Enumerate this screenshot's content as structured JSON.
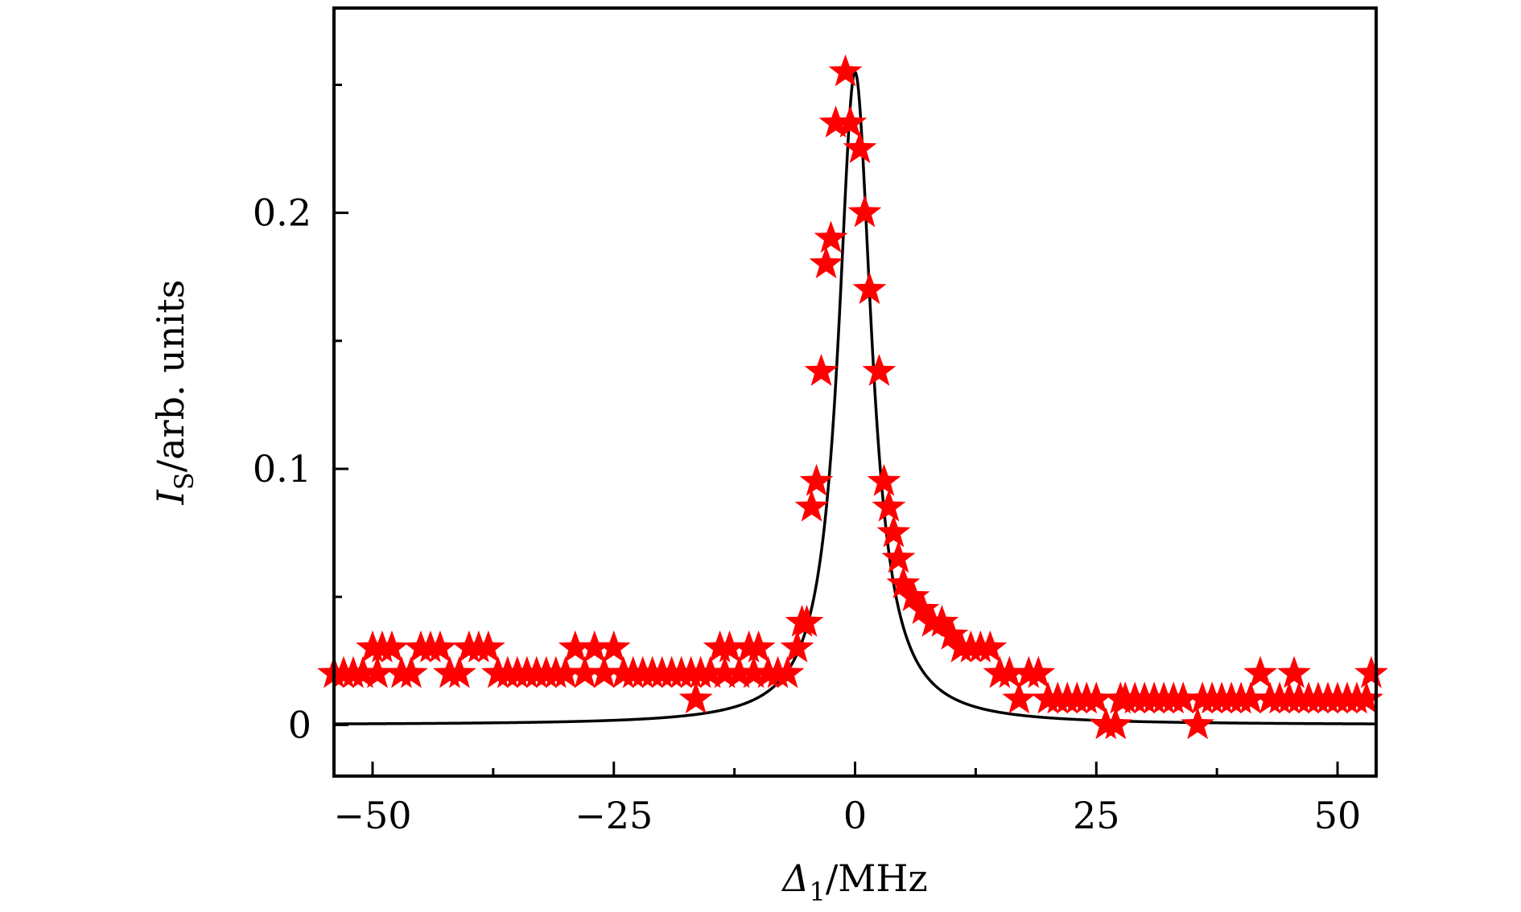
{
  "chart_data": {
    "type": "scatter",
    "xlabel": {
      "symbol": "Δ",
      "subscript": "1",
      "unit": "/MHz"
    },
    "ylabel": {
      "symbol": "I",
      "subscript": "S",
      "unit": "/arb. units"
    },
    "xlim": [
      -54,
      54
    ],
    "ylim": [
      -0.02,
      0.28
    ],
    "x_ticks": [
      -50,
      -25,
      0,
      25,
      50
    ],
    "x_tick_labels": [
      "−50",
      "−25",
      "0",
      "25",
      "50"
    ],
    "x_minor_ticks": [
      -37.5,
      -12.5,
      12.5,
      37.5
    ],
    "y_ticks": [
      0,
      0.1,
      0.2
    ],
    "y_tick_labels": [
      "0",
      "0.1",
      "0.2"
    ],
    "y_minor_ticks": [
      0.05,
      0.15,
      0.25
    ],
    "grid": false,
    "legend": "none",
    "marker_color": "#ff0000",
    "line_color": "#000000",
    "fit": {
      "type": "lorentzian",
      "center": 0,
      "amplitude": 0.255,
      "hwhm": 2.1
    },
    "series": [
      {
        "points": [
          [
            -54,
            0.02
          ],
          [
            -53,
            0.02
          ],
          [
            -52,
            0.02
          ],
          [
            -51,
            0.02
          ],
          [
            -50,
            0.03
          ],
          [
            -49.5,
            0.02
          ],
          [
            -49,
            0.03
          ],
          [
            -48,
            0.03
          ],
          [
            -47,
            0.02
          ],
          [
            -46,
            0.02
          ],
          [
            -45,
            0.03
          ],
          [
            -44,
            0.03
          ],
          [
            -43,
            0.03
          ],
          [
            -42,
            0.02
          ],
          [
            -41,
            0.02
          ],
          [
            -40,
            0.03
          ],
          [
            -39,
            0.03
          ],
          [
            -38,
            0.03
          ],
          [
            -37,
            0.02
          ],
          [
            -36,
            0.02
          ],
          [
            -35,
            0.02
          ],
          [
            -34,
            0.02
          ],
          [
            -33,
            0.02
          ],
          [
            -32,
            0.02
          ],
          [
            -31,
            0.02
          ],
          [
            -30,
            0.02
          ],
          [
            -29,
            0.03
          ],
          [
            -28,
            0.02
          ],
          [
            -27,
            0.03
          ],
          [
            -26,
            0.02
          ],
          [
            -25,
            0.03
          ],
          [
            -24,
            0.02
          ],
          [
            -23,
            0.02
          ],
          [
            -22,
            0.02
          ],
          [
            -21,
            0.02
          ],
          [
            -20,
            0.02
          ],
          [
            -19,
            0.02
          ],
          [
            -18,
            0.02
          ],
          [
            -17,
            0.02
          ],
          [
            -16.5,
            0.01
          ],
          [
            -16,
            0.02
          ],
          [
            -15,
            0.02
          ],
          [
            -14,
            0.03
          ],
          [
            -13.5,
            0.02
          ],
          [
            -13,
            0.03
          ],
          [
            -12,
            0.02
          ],
          [
            -11,
            0.03
          ],
          [
            -10.5,
            0.02
          ],
          [
            -10,
            0.03
          ],
          [
            -9,
            0.02
          ],
          [
            -8,
            0.02
          ],
          [
            -7,
            0.02
          ],
          [
            -6,
            0.03
          ],
          [
            -5.5,
            0.04
          ],
          [
            -5,
            0.04
          ],
          [
            -4.5,
            0.085
          ],
          [
            -4,
            0.095
          ],
          [
            -3.5,
            0.138
          ],
          [
            -3,
            0.18
          ],
          [
            -2.5,
            0.19
          ],
          [
            -2,
            0.235
          ],
          [
            -1,
            0.255
          ],
          [
            -0.5,
            0.235
          ],
          [
            0.5,
            0.225
          ],
          [
            1,
            0.2
          ],
          [
            1.5,
            0.17
          ],
          [
            2.5,
            0.138
          ],
          [
            3,
            0.095
          ],
          [
            3.5,
            0.085
          ],
          [
            4,
            0.075
          ],
          [
            4.5,
            0.065
          ],
          [
            5,
            0.055
          ],
          [
            6,
            0.05
          ],
          [
            7,
            0.045
          ],
          [
            8,
            0.04
          ],
          [
            9,
            0.04
          ],
          [
            10,
            0.035
          ],
          [
            11,
            0.03
          ],
          [
            12,
            0.03
          ],
          [
            13,
            0.03
          ],
          [
            14,
            0.03
          ],
          [
            15,
            0.02
          ],
          [
            16,
            0.02
          ],
          [
            17,
            0.01
          ],
          [
            18,
            0.02
          ],
          [
            19,
            0.02
          ],
          [
            20,
            0.01
          ],
          [
            21,
            0.01
          ],
          [
            22,
            0.01
          ],
          [
            23,
            0.01
          ],
          [
            24,
            0.01
          ],
          [
            25,
            0.01
          ],
          [
            26,
            0.0
          ],
          [
            27,
            0.0
          ],
          [
            27.5,
            0.01
          ],
          [
            28,
            0.01
          ],
          [
            29,
            0.01
          ],
          [
            30,
            0.01
          ],
          [
            31,
            0.01
          ],
          [
            32,
            0.01
          ],
          [
            33,
            0.01
          ],
          [
            34,
            0.01
          ],
          [
            35.5,
            0.0
          ],
          [
            36,
            0.01
          ],
          [
            37,
            0.01
          ],
          [
            38,
            0.01
          ],
          [
            39,
            0.01
          ],
          [
            40,
            0.01
          ],
          [
            41,
            0.01
          ],
          [
            42,
            0.02
          ],
          [
            43,
            0.01
          ],
          [
            44,
            0.01
          ],
          [
            45,
            0.01
          ],
          [
            45.5,
            0.02
          ],
          [
            46,
            0.01
          ],
          [
            47,
            0.01
          ],
          [
            48,
            0.01
          ],
          [
            49,
            0.01
          ],
          [
            50,
            0.01
          ],
          [
            51,
            0.01
          ],
          [
            52,
            0.01
          ],
          [
            53,
            0.01
          ],
          [
            53.5,
            0.02
          ]
        ]
      }
    ]
  }
}
